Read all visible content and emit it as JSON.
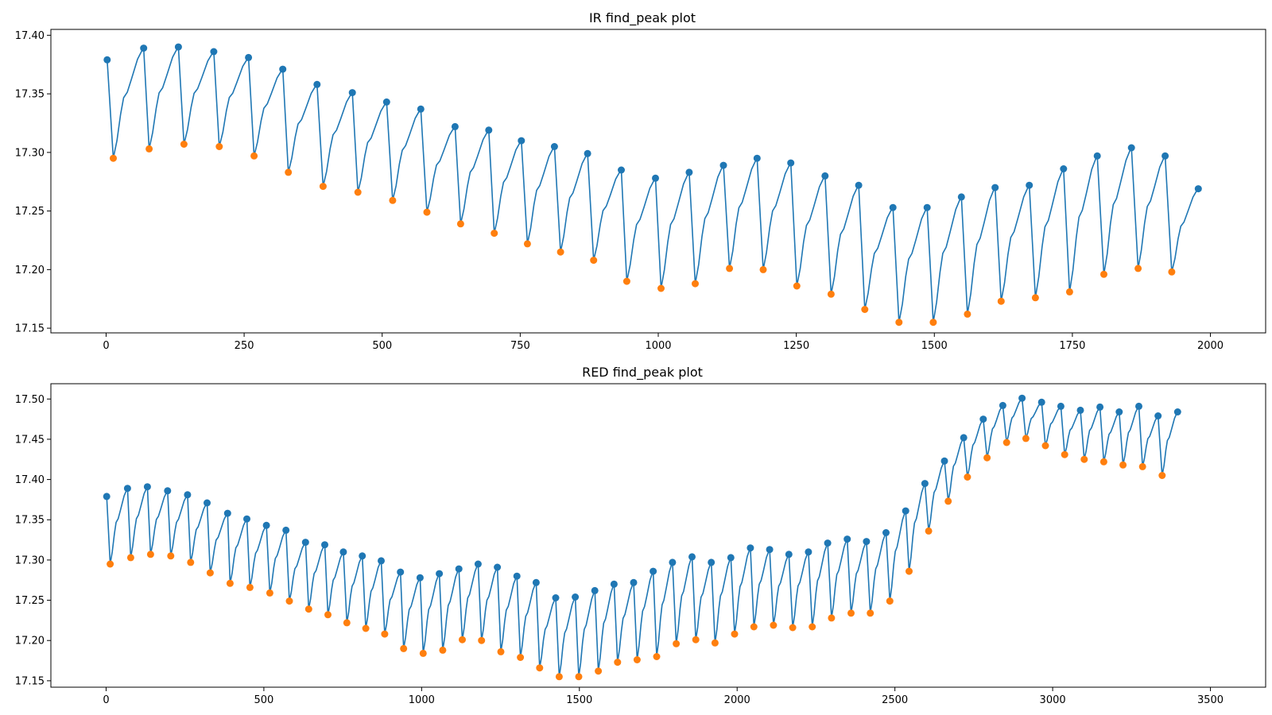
{
  "chart_data": [
    {
      "type": "line",
      "title": "IR find_peak plot",
      "xlabel": "",
      "ylabel": "",
      "xlim": [
        -100,
        2100
      ],
      "ylim": [
        17.146,
        17.405
      ],
      "xticks": [
        0,
        250,
        500,
        750,
        1000,
        1250,
        1500,
        1750,
        2000
      ],
      "yticks": [
        17.15,
        17.2,
        17.25,
        17.3,
        17.35,
        17.4
      ],
      "ytick_decimals": 2,
      "grid": false,
      "legend": "none",
      "line_color": "#1f77b4",
      "peak_color": "#1f77b4",
      "trough_color": "#ff7f0e",
      "peaks": [
        [
          2,
          17.379
        ],
        [
          68,
          17.389
        ],
        [
          131,
          17.39
        ],
        [
          195,
          17.386
        ],
        [
          258,
          17.381
        ],
        [
          320,
          17.371
        ],
        [
          382,
          17.358
        ],
        [
          446,
          17.351
        ],
        [
          508,
          17.343
        ],
        [
          570,
          17.337
        ],
        [
          632,
          17.322
        ],
        [
          693,
          17.319
        ],
        [
          752,
          17.31
        ],
        [
          812,
          17.305
        ],
        [
          872,
          17.299
        ],
        [
          933,
          17.285
        ],
        [
          995,
          17.278
        ],
        [
          1056,
          17.283
        ],
        [
          1118,
          17.289
        ],
        [
          1179,
          17.295
        ],
        [
          1240,
          17.291
        ],
        [
          1302,
          17.28
        ],
        [
          1363,
          17.272
        ],
        [
          1425,
          17.253
        ],
        [
          1487,
          17.253
        ],
        [
          1549,
          17.262
        ],
        [
          1610,
          17.27
        ],
        [
          1672,
          17.272
        ],
        [
          1734,
          17.286
        ],
        [
          1795,
          17.297
        ],
        [
          1857,
          17.304
        ],
        [
          1918,
          17.297
        ],
        [
          1978,
          17.269
        ]
      ],
      "troughs": [
        [
          13,
          17.295
        ],
        [
          78,
          17.303
        ],
        [
          141,
          17.307
        ],
        [
          205,
          17.305
        ],
        [
          268,
          17.297
        ],
        [
          330,
          17.283
        ],
        [
          393,
          17.271
        ],
        [
          456,
          17.266
        ],
        [
          519,
          17.259
        ],
        [
          581,
          17.249
        ],
        [
          642,
          17.239
        ],
        [
          703,
          17.231
        ],
        [
          763,
          17.222
        ],
        [
          823,
          17.215
        ],
        [
          883,
          17.208
        ],
        [
          943,
          17.19
        ],
        [
          1005,
          17.184
        ],
        [
          1067,
          17.188
        ],
        [
          1129,
          17.201
        ],
        [
          1190,
          17.2
        ],
        [
          1251,
          17.186
        ],
        [
          1313,
          17.179
        ],
        [
          1374,
          17.166
        ],
        [
          1436,
          17.155
        ],
        [
          1498,
          17.155
        ],
        [
          1560,
          17.162
        ],
        [
          1621,
          17.173
        ],
        [
          1683,
          17.176
        ],
        [
          1745,
          17.181
        ],
        [
          1807,
          17.196
        ],
        [
          1869,
          17.201
        ],
        [
          1930,
          17.198
        ]
      ]
    },
    {
      "type": "line",
      "title": "RED find_peak plot",
      "xlabel": "",
      "ylabel": "",
      "xlim": [
        -175,
        3675
      ],
      "ylim": [
        17.142,
        17.519
      ],
      "xticks": [
        0,
        500,
        1000,
        1500,
        2000,
        2500,
        3000,
        3500
      ],
      "yticks": [
        17.15,
        17.2,
        17.25,
        17.3,
        17.35,
        17.4,
        17.45,
        17.5
      ],
      "ytick_decimals": 2,
      "grid": false,
      "legend": "none",
      "line_color": "#1f77b4",
      "peak_color": "#1f77b4",
      "trough_color": "#ff7f0e",
      "peaks": [
        [
          2,
          17.379
        ],
        [
          68,
          17.389
        ],
        [
          131,
          17.391
        ],
        [
          195,
          17.386
        ],
        [
          258,
          17.381
        ],
        [
          320,
          17.371
        ],
        [
          385,
          17.358
        ],
        [
          446,
          17.351
        ],
        [
          508,
          17.343
        ],
        [
          570,
          17.337
        ],
        [
          632,
          17.322
        ],
        [
          693,
          17.319
        ],
        [
          752,
          17.31
        ],
        [
          812,
          17.305
        ],
        [
          872,
          17.299
        ],
        [
          933,
          17.285
        ],
        [
          995,
          17.278
        ],
        [
          1056,
          17.283
        ],
        [
          1118,
          17.289
        ],
        [
          1179,
          17.295
        ],
        [
          1240,
          17.291
        ],
        [
          1302,
          17.28
        ],
        [
          1363,
          17.272
        ],
        [
          1425,
          17.253
        ],
        [
          1487,
          17.254
        ],
        [
          1549,
          17.262
        ],
        [
          1610,
          17.27
        ],
        [
          1672,
          17.272
        ],
        [
          1734,
          17.286
        ],
        [
          1795,
          17.297
        ],
        [
          1857,
          17.304
        ],
        [
          1918,
          17.297
        ],
        [
          1980,
          17.303
        ],
        [
          2042,
          17.315
        ],
        [
          2103,
          17.313
        ],
        [
          2164,
          17.307
        ],
        [
          2226,
          17.31
        ],
        [
          2287,
          17.321
        ],
        [
          2349,
          17.326
        ],
        [
          2410,
          17.323
        ],
        [
          2472,
          17.334
        ],
        [
          2534,
          17.361
        ],
        [
          2595,
          17.395
        ],
        [
          2657,
          17.423
        ],
        [
          2718,
          17.452
        ],
        [
          2780,
          17.475
        ],
        [
          2842,
          17.492
        ],
        [
          2903,
          17.501
        ],
        [
          2965,
          17.496
        ],
        [
          3026,
          17.491
        ],
        [
          3088,
          17.486
        ],
        [
          3150,
          17.49
        ],
        [
          3211,
          17.484
        ],
        [
          3273,
          17.491
        ],
        [
          3334,
          17.479
        ],
        [
          3396,
          17.484
        ]
      ],
      "troughs": [
        [
          13,
          17.295
        ],
        [
          78,
          17.303
        ],
        [
          141,
          17.307
        ],
        [
          205,
          17.305
        ],
        [
          268,
          17.297
        ],
        [
          330,
          17.284
        ],
        [
          393,
          17.271
        ],
        [
          456,
          17.266
        ],
        [
          519,
          17.259
        ],
        [
          581,
          17.249
        ],
        [
          642,
          17.239
        ],
        [
          703,
          17.232
        ],
        [
          763,
          17.222
        ],
        [
          823,
          17.215
        ],
        [
          883,
          17.208
        ],
        [
          943,
          17.19
        ],
        [
          1005,
          17.184
        ],
        [
          1067,
          17.188
        ],
        [
          1129,
          17.201
        ],
        [
          1190,
          17.2
        ],
        [
          1251,
          17.186
        ],
        [
          1313,
          17.179
        ],
        [
          1374,
          17.166
        ],
        [
          1436,
          17.155
        ],
        [
          1498,
          17.155
        ],
        [
          1560,
          17.162
        ],
        [
          1621,
          17.173
        ],
        [
          1683,
          17.176
        ],
        [
          1745,
          17.18
        ],
        [
          1807,
          17.196
        ],
        [
          1869,
          17.201
        ],
        [
          1930,
          17.197
        ],
        [
          1992,
          17.208
        ],
        [
          2053,
          17.217
        ],
        [
          2115,
          17.219
        ],
        [
          2176,
          17.216
        ],
        [
          2238,
          17.217
        ],
        [
          2299,
          17.228
        ],
        [
          2361,
          17.234
        ],
        [
          2422,
          17.234
        ],
        [
          2484,
          17.249
        ],
        [
          2545,
          17.286
        ],
        [
          2607,
          17.336
        ],
        [
          2669,
          17.373
        ],
        [
          2730,
          17.403
        ],
        [
          2792,
          17.427
        ],
        [
          2854,
          17.446
        ],
        [
          2915,
          17.451
        ],
        [
          2977,
          17.442
        ],
        [
          3038,
          17.431
        ],
        [
          3100,
          17.425
        ],
        [
          3162,
          17.422
        ],
        [
          3223,
          17.418
        ],
        [
          3285,
          17.416
        ],
        [
          3347,
          17.405
        ]
      ]
    }
  ]
}
